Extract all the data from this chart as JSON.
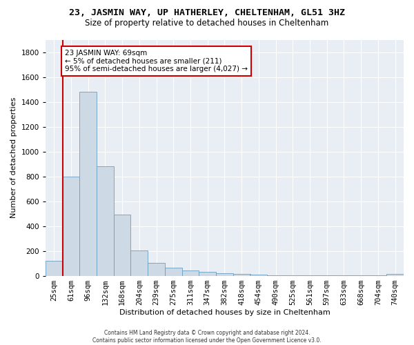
{
  "title_line1": "23, JASMIN WAY, UP HATHERLEY, CHELTENHAM, GL51 3HZ",
  "title_line2": "Size of property relative to detached houses in Cheltenham",
  "xlabel": "Distribution of detached houses by size in Cheltenham",
  "ylabel": "Number of detached properties",
  "footer_line1": "Contains HM Land Registry data © Crown copyright and database right 2024.",
  "footer_line2": "Contains public sector information licensed under the Open Government Licence v3.0.",
  "categories": [
    "25sqm",
    "61sqm",
    "96sqm",
    "132sqm",
    "168sqm",
    "204sqm",
    "239sqm",
    "275sqm",
    "311sqm",
    "347sqm",
    "382sqm",
    "418sqm",
    "454sqm",
    "490sqm",
    "525sqm",
    "561sqm",
    "597sqm",
    "633sqm",
    "668sqm",
    "704sqm",
    "740sqm"
  ],
  "values": [
    120,
    800,
    1480,
    880,
    490,
    205,
    105,
    65,
    40,
    32,
    22,
    15,
    8,
    5,
    3,
    2,
    1,
    1,
    1,
    1,
    15
  ],
  "bar_color": "#cdd9e5",
  "bar_edge_color": "#6a9ec0",
  "annotation_box_color": "#cc0000",
  "annotation_text": "23 JASMIN WAY: 69sqm\n← 5% of detached houses are smaller (211)\n95% of semi-detached houses are larger (4,027) →",
  "vline_x_index": 1,
  "ylim": [
    0,
    1900
  ],
  "yticks": [
    0,
    200,
    400,
    600,
    800,
    1000,
    1200,
    1400,
    1600,
    1800
  ],
  "bg_color": "#ffffff",
  "plot_bg_color": "#e8eef4",
  "grid_color": "#ffffff",
  "title_fontsize": 9.5,
  "subtitle_fontsize": 8.5,
  "axis_label_fontsize": 8,
  "tick_fontsize": 7.5
}
